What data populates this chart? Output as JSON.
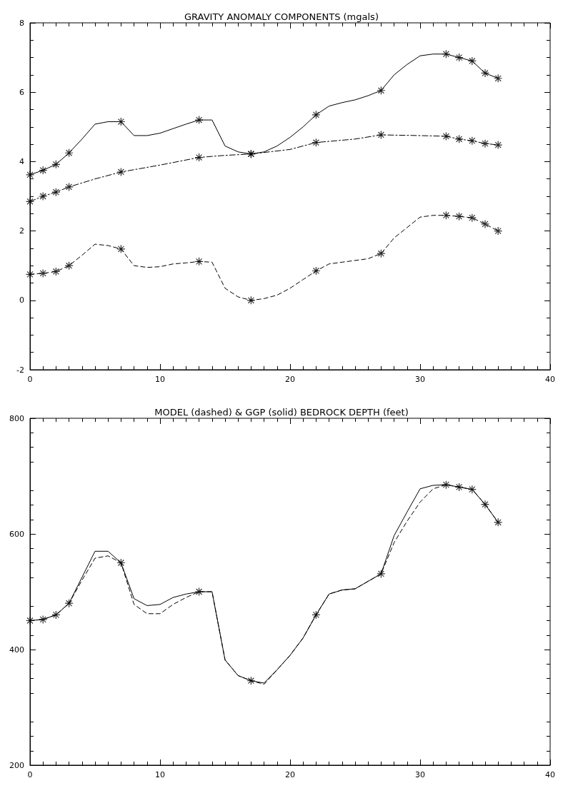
{
  "chart_data": [
    {
      "type": "line",
      "title": "GRAVITY ANOMALY COMPONENTS (mgals)",
      "xlim": [
        0,
        40
      ],
      "xticks": [
        0,
        10,
        20,
        30,
        40
      ],
      "ylim": [
        -2,
        8
      ],
      "yticks": [
        -2,
        0,
        2,
        4,
        6,
        8
      ],
      "grid": false,
      "series": [
        {
          "color": "#000000",
          "line_style": "solid",
          "marker": "none",
          "x": [
            0,
            1,
            2,
            3,
            4,
            5,
            6,
            7,
            8,
            9,
            10,
            11,
            12,
            13,
            14,
            15,
            16,
            17,
            18,
            19,
            20,
            21,
            22,
            23,
            24,
            25,
            26,
            27,
            28,
            29,
            30,
            31,
            32,
            33,
            34,
            35,
            36
          ],
          "values": [
            3.62,
            3.75,
            3.92,
            4.25,
            4.65,
            5.08,
            5.15,
            5.15,
            4.75,
            4.75,
            4.82,
            4.95,
            5.08,
            5.2,
            5.2,
            4.45,
            4.28,
            4.22,
            4.28,
            4.45,
            4.7,
            5.0,
            5.35,
            5.6,
            5.7,
            5.78,
            5.9,
            6.05,
            6.5,
            6.8,
            7.05,
            7.1,
            7.1,
            7.0,
            6.9,
            6.55,
            6.4
          ]
        },
        {
          "color": "#000000",
          "line_style": "dashdot",
          "marker": "none",
          "x": [
            0,
            1,
            2,
            3,
            5,
            7,
            10,
            13,
            15,
            17,
            20,
            22,
            25,
            27,
            30,
            32,
            33,
            34,
            35,
            36
          ],
          "values": [
            2.85,
            3.0,
            3.12,
            3.27,
            3.5,
            3.7,
            3.9,
            4.12,
            4.18,
            4.22,
            4.35,
            4.55,
            4.65,
            4.77,
            4.75,
            4.73,
            4.65,
            4.6,
            4.52,
            4.48
          ]
        },
        {
          "color": "#000000",
          "line_style": "dashed",
          "marker": "none",
          "x": [
            0,
            1,
            2,
            3,
            4,
            5,
            6,
            7,
            8,
            9,
            10,
            11,
            12,
            13,
            14,
            15,
            16,
            17,
            18,
            19,
            20,
            21,
            22,
            23,
            24,
            25,
            26,
            27,
            28,
            29,
            30,
            31,
            32,
            33,
            34,
            35,
            36
          ],
          "values": [
            0.75,
            0.78,
            0.83,
            1.0,
            1.3,
            1.62,
            1.58,
            1.48,
            1.0,
            0.95,
            0.97,
            1.05,
            1.08,
            1.12,
            1.1,
            0.35,
            0.1,
            0.0,
            0.05,
            0.15,
            0.35,
            0.6,
            0.85,
            1.05,
            1.1,
            1.15,
            1.2,
            1.35,
            1.8,
            2.1,
            2.4,
            2.45,
            2.45,
            2.42,
            2.38,
            2.2,
            2.0
          ]
        },
        {
          "type": "scatter",
          "color": "#000000",
          "marker": "cross",
          "x": [
            0,
            1,
            2,
            3,
            7,
            13,
            17,
            22,
            27,
            32,
            33,
            34,
            35,
            36
          ],
          "values": [
            3.62,
            3.75,
            3.92,
            4.25,
            5.15,
            5.2,
            4.22,
            5.35,
            6.05,
            7.1,
            7.0,
            6.9,
            6.55,
            6.4
          ]
        },
        {
          "type": "scatter",
          "color": "#000000",
          "marker": "cross",
          "x": [
            0,
            1,
            2,
            3,
            7,
            13,
            17,
            22,
            27,
            32,
            33,
            34,
            35,
            36
          ],
          "values": [
            2.85,
            3.0,
            3.12,
            3.27,
            3.7,
            4.12,
            4.22,
            4.55,
            4.77,
            4.73,
            4.65,
            4.6,
            4.52,
            4.48
          ]
        },
        {
          "type": "scatter",
          "color": "#000000",
          "marker": "cross",
          "x": [
            0,
            1,
            2,
            3,
            7,
            13,
            17,
            22,
            27,
            32,
            33,
            34,
            35,
            36
          ],
          "values": [
            0.75,
            0.78,
            0.83,
            1.0,
            1.48,
            1.12,
            0.0,
            0.85,
            1.35,
            2.45,
            2.42,
            2.38,
            2.2,
            2.0
          ]
        }
      ]
    },
    {
      "type": "line",
      "title": "MODEL (dashed) & GGP (solid) BEDROCK DEPTH (feet)",
      "xlim": [
        0,
        40
      ],
      "xticks": [
        0,
        10,
        20,
        30,
        40
      ],
      "ylim": [
        200,
        800
      ],
      "yticks": [
        200,
        400,
        600,
        800
      ],
      "grid": false,
      "series": [
        {
          "color": "#000000",
          "line_style": "dashed",
          "marker": "none",
          "x": [
            0,
            1,
            2,
            3,
            4,
            5,
            6,
            7,
            8,
            9,
            10,
            11,
            12,
            13,
            14,
            15,
            16,
            17,
            18,
            19,
            20,
            21,
            22,
            23,
            24,
            25,
            26,
            27,
            28,
            29,
            30,
            31,
            32,
            33,
            34,
            35,
            36
          ],
          "values": [
            450,
            452,
            460,
            480,
            520,
            558,
            562,
            550,
            478,
            462,
            462,
            478,
            490,
            500,
            500,
            382,
            355,
            346,
            340,
            365,
            390,
            420,
            460,
            496,
            503,
            505,
            518,
            531,
            585,
            622,
            655,
            678,
            685,
            681,
            677,
            651,
            620
          ]
        },
        {
          "color": "#000000",
          "line_style": "solid",
          "marker": "none",
          "x": [
            0,
            1,
            2,
            3,
            4,
            5,
            6,
            7,
            8,
            9,
            10,
            11,
            12,
            13,
            14,
            15,
            16,
            17,
            18,
            19,
            20,
            21,
            22,
            23,
            24,
            25,
            26,
            27,
            28,
            29,
            30,
            31,
            32,
            33,
            34,
            35,
            36
          ],
          "values": [
            450,
            452,
            460,
            480,
            525,
            570,
            570,
            550,
            488,
            476,
            478,
            490,
            496,
            500,
            500,
            382,
            355,
            346,
            342,
            365,
            390,
            420,
            460,
            496,
            503,
            505,
            518,
            531,
            597,
            638,
            678,
            684,
            685,
            681,
            677,
            651,
            620
          ]
        },
        {
          "type": "scatter",
          "color": "#000000",
          "marker": "cross",
          "x": [
            0,
            1,
            2,
            3,
            7,
            13,
            17,
            22,
            27,
            32,
            33,
            34,
            35,
            36
          ],
          "values": [
            450,
            452,
            460,
            480,
            550,
            500,
            346,
            460,
            531,
            685,
            681,
            677,
            651,
            620
          ]
        }
      ]
    }
  ]
}
